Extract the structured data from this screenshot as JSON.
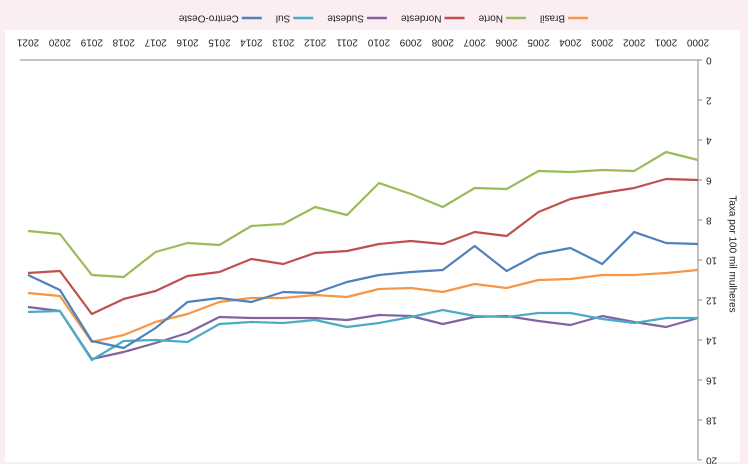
{
  "chart_data": {
    "type": "line",
    "y_label": "Taxa por 100 mil mulheres",
    "categories": [
      "2000",
      "2001",
      "2002",
      "2003",
      "2004",
      "2005",
      "2006",
      "2007",
      "2008",
      "2009",
      "2010",
      "2011",
      "2012",
      "2013",
      "2014",
      "2015",
      "2016",
      "2017",
      "2018",
      "2019",
      "2020",
      "2021"
    ],
    "series": [
      {
        "name": "Brasil",
        "color": "#f79646",
        "values": [
          10.5,
          10.65,
          10.75,
          10.75,
          10.95,
          11.0,
          11.4,
          11.2,
          11.6,
          11.4,
          11.45,
          11.85,
          11.75,
          11.9,
          11.9,
          12.1,
          12.7,
          13.1,
          13.75,
          14.1,
          11.8,
          11.65
        ]
      },
      {
        "name": "Norte",
        "color": "#9bbb59",
        "values": [
          5.0,
          4.6,
          5.55,
          5.5,
          5.6,
          5.55,
          6.45,
          6.4,
          7.35,
          6.7,
          6.15,
          7.75,
          7.35,
          8.2,
          8.3,
          9.25,
          9.15,
          9.6,
          10.85,
          10.75,
          8.7,
          8.55
        ]
      },
      {
        "name": "Nordeste",
        "color": "#c0504d",
        "values": [
          6.0,
          5.95,
          6.4,
          6.65,
          6.95,
          7.6,
          8.8,
          8.6,
          9.2,
          9.05,
          9.2,
          9.55,
          9.65,
          10.2,
          9.95,
          10.6,
          10.8,
          11.55,
          11.95,
          12.7,
          10.55,
          10.65
        ]
      },
      {
        "name": "Sudeste",
        "color": "#8064a2",
        "values": [
          12.9,
          13.35,
          13.1,
          12.8,
          13.25,
          13.05,
          12.8,
          12.85,
          13.2,
          12.8,
          12.75,
          13.0,
          12.9,
          12.9,
          12.9,
          12.85,
          13.65,
          14.15,
          14.6,
          14.95,
          12.55,
          12.35
        ]
      },
      {
        "name": "Sul",
        "color": "#4bacc6",
        "values": [
          12.9,
          12.9,
          13.15,
          12.95,
          12.65,
          12.65,
          12.85,
          12.8,
          12.5,
          12.85,
          13.15,
          13.35,
          13.0,
          13.15,
          13.1,
          13.2,
          14.1,
          14.0,
          14.05,
          15.0,
          12.55,
          12.6
        ]
      },
      {
        "name": "Centro-Oeste",
        "color": "#4f81bd",
        "values": [
          9.2,
          9.15,
          8.6,
          10.2,
          9.4,
          9.7,
          10.55,
          9.3,
          10.5,
          10.6,
          10.75,
          11.1,
          11.65,
          11.6,
          12.1,
          11.9,
          12.1,
          13.4,
          14.4,
          14.05,
          11.5,
          10.75
        ]
      }
    ],
    "ylim": [
      0,
      20
    ],
    "yticks": [
      0,
      2,
      4,
      6,
      8,
      10,
      12,
      14,
      16,
      18,
      20
    ],
    "legend": "bottom"
  }
}
